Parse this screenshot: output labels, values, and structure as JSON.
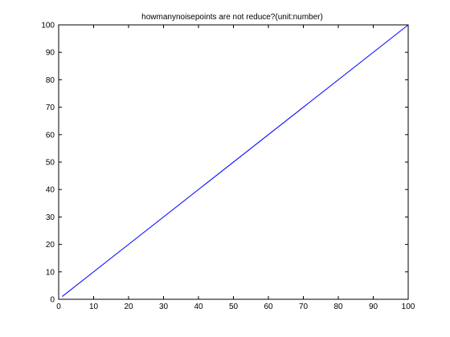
{
  "chart_data": {
    "type": "line",
    "title": "howmanynoisepoints are not reduce?(unit:number)",
    "xlabel": "",
    "ylabel": "",
    "xlim": [
      0,
      100
    ],
    "ylim": [
      0,
      100
    ],
    "xticks": [
      0,
      10,
      20,
      30,
      40,
      50,
      60,
      70,
      80,
      90,
      100
    ],
    "yticks": [
      0,
      10,
      20,
      30,
      40,
      50,
      60,
      70,
      80,
      90,
      100
    ],
    "grid": false,
    "series": [
      {
        "color": "#0000ff",
        "x": [
          1,
          100
        ],
        "y": [
          1,
          100
        ]
      }
    ]
  }
}
